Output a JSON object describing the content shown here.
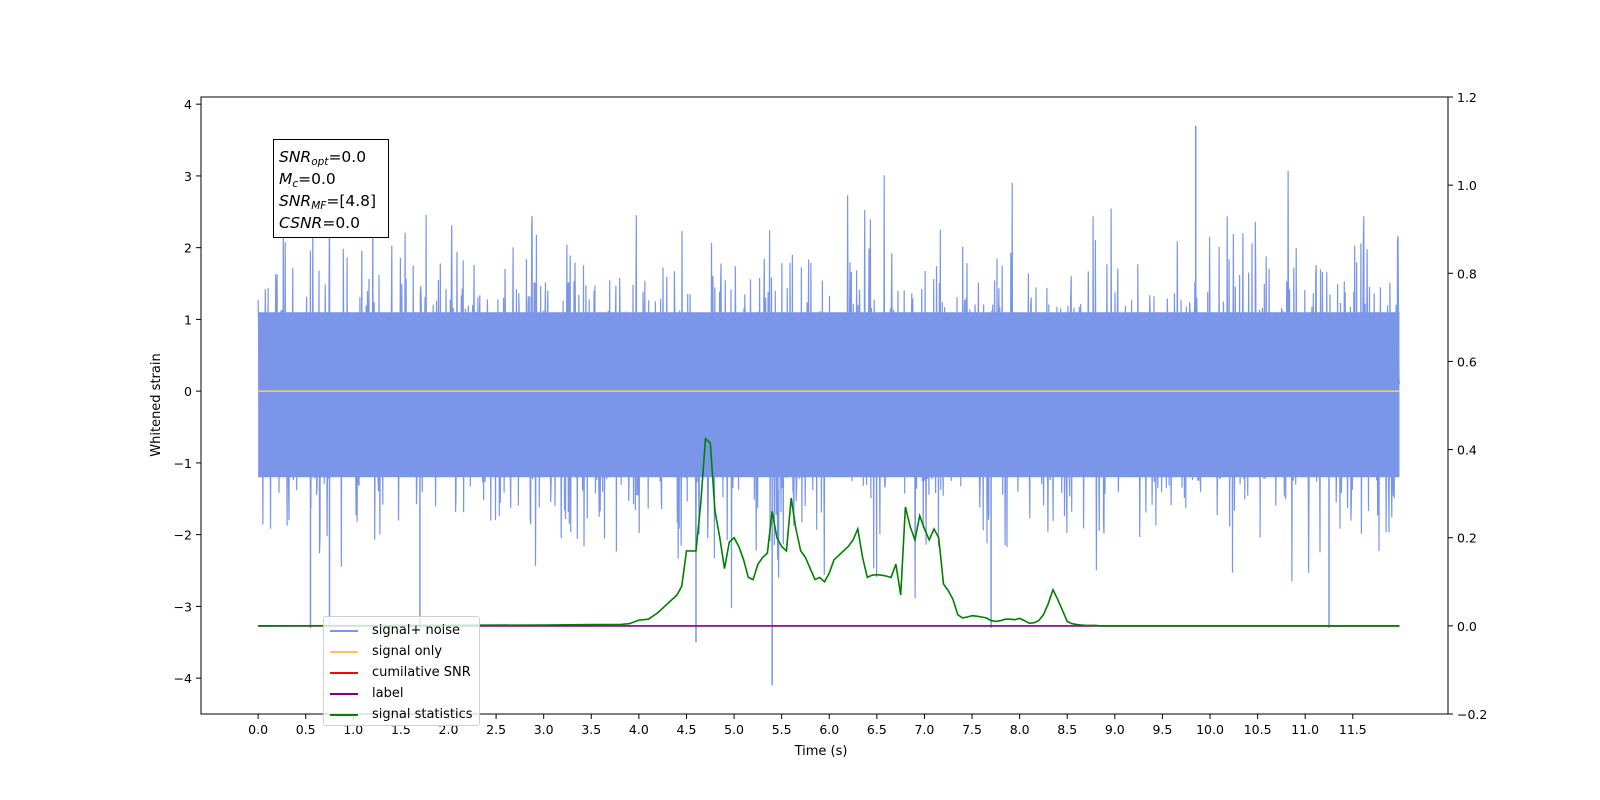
{
  "chart_data": {
    "type": "line",
    "xlabel": "Time (s)",
    "ylabel": "Whitened strain",
    "xlim": [
      -0.6,
      12.5
    ],
    "ylim": [
      -4.5,
      4.1
    ],
    "y2lim": [
      -0.2,
      1.2
    ],
    "xticks": [
      "0.0",
      "0.5",
      "1.0",
      "1.5",
      "2.0",
      "2.5",
      "3.0",
      "3.5",
      "4.0",
      "4.5",
      "5.0",
      "5.5",
      "6.0",
      "6.5",
      "7.0",
      "7.5",
      "8.0",
      "8.5",
      "9.0",
      "9.5",
      "10.0",
      "10.5",
      "11.0",
      "11.5"
    ],
    "yticks": [
      "4",
      "3",
      "2",
      "1",
      "0",
      "−1",
      "−2",
      "−3",
      "−4"
    ],
    "y2ticks": [
      "1.2",
      "1.0",
      "0.8",
      "0.6",
      "0.4",
      "0.2",
      "0.0",
      "−0.2"
    ],
    "annotation": {
      "line1_sym": "SNR",
      "line1_sub": "opt",
      "line1_val": "=0.0",
      "line2_sym": "M",
      "line2_sub": "c",
      "line2_val": "=0.0",
      "line3_sym": "SNR",
      "line3_sub": "MF",
      "line3_val": "=[4.8]",
      "line4_sym": "CSNR",
      "line4_val": "=0.0"
    },
    "series": [
      {
        "name": "signal+ noise",
        "color": "#7b96e8",
        "axis": "left",
        "description_of_values": "approx. white noise, std ~1, range -4.1 to 3.7",
        "extremes": [
          [
            0.55,
            -3.3
          ],
          [
            0.75,
            -3.3
          ],
          [
            1.7,
            -3.3
          ],
          [
            4.6,
            -3.5
          ],
          [
            5.4,
            -4.1
          ],
          [
            7.7,
            -3.3
          ],
          [
            9.85,
            3.7
          ],
          [
            11.25,
            -3.3
          ]
        ]
      },
      {
        "name": "signal only",
        "color": "#ffc560",
        "axis": "left",
        "x": [
          0.0,
          11.99
        ],
        "values": [
          0.0,
          0.0
        ]
      },
      {
        "name": "cumilative SNR",
        "color": "#ff0000",
        "axis": "right",
        "x": [
          0.0,
          11.99
        ],
        "values": [
          0.0,
          0.0
        ]
      },
      {
        "name": "label",
        "color": "#800080",
        "axis": "right",
        "x": [
          0.0,
          11.99
        ],
        "values": [
          0.0,
          0.0
        ]
      },
      {
        "name": "signal statistics",
        "color": "#008000",
        "axis": "right",
        "x": [
          0.0,
          3.0,
          3.5,
          3.8,
          3.9,
          4.0,
          4.1,
          4.2,
          4.3,
          4.4,
          4.45,
          4.5,
          4.6,
          4.65,
          4.7,
          4.75,
          4.8,
          4.85,
          4.9,
          4.95,
          5.0,
          5.05,
          5.1,
          5.15,
          5.2,
          5.25,
          5.3,
          5.35,
          5.4,
          5.45,
          5.5,
          5.55,
          5.6,
          5.65,
          5.7,
          5.75,
          5.8,
          5.85,
          5.9,
          5.95,
          6.0,
          6.05,
          6.1,
          6.15,
          6.2,
          6.25,
          6.3,
          6.35,
          6.4,
          6.45,
          6.5,
          6.55,
          6.6,
          6.65,
          6.7,
          6.75,
          6.8,
          6.85,
          6.9,
          6.95,
          7.0,
          7.05,
          7.1,
          7.15,
          7.2,
          7.25,
          7.3,
          7.35,
          7.4,
          7.45,
          7.5,
          7.55,
          7.6,
          7.65,
          7.7,
          7.75,
          7.8,
          7.85,
          7.9,
          7.95,
          8.0,
          8.05,
          8.1,
          8.15,
          8.2,
          8.25,
          8.3,
          8.35,
          8.4,
          8.45,
          8.5,
          8.55,
          8.6,
          8.65,
          8.7,
          8.75,
          8.8,
          8.85,
          8.9,
          8.95,
          9.0,
          9.1,
          9.2,
          9.5,
          11.99
        ],
        "values": [
          0.0,
          0.002,
          0.003,
          0.003,
          0.005,
          0.013,
          0.015,
          0.03,
          0.05,
          0.07,
          0.09,
          0.17,
          0.17,
          0.28,
          0.425,
          0.415,
          0.26,
          0.2,
          0.13,
          0.19,
          0.2,
          0.18,
          0.15,
          0.11,
          0.105,
          0.14,
          0.155,
          0.165,
          0.26,
          0.2,
          0.18,
          0.17,
          0.29,
          0.22,
          0.17,
          0.155,
          0.13,
          0.105,
          0.11,
          0.1,
          0.12,
          0.15,
          0.16,
          0.17,
          0.18,
          0.195,
          0.22,
          0.155,
          0.11,
          0.115,
          0.116,
          0.115,
          0.113,
          0.11,
          0.14,
          0.07,
          0.27,
          0.225,
          0.195,
          0.25,
          0.22,
          0.195,
          0.22,
          0.2,
          0.095,
          0.08,
          0.06,
          0.025,
          0.018,
          0.02,
          0.023,
          0.022,
          0.02,
          0.018,
          0.012,
          0.01,
          0.012,
          0.015,
          0.015,
          0.014,
          0.017,
          0.012,
          0.006,
          0.007,
          0.012,
          0.025,
          0.05,
          0.082,
          0.06,
          0.035,
          0.01,
          0.005,
          0.003,
          0.002,
          0.001,
          0.001,
          0.001,
          0.0,
          0.0,
          0.0,
          0.0,
          0.0,
          0.0,
          0.0,
          0.0
        ]
      }
    ],
    "grid": false,
    "legend_position": "lower-left"
  }
}
